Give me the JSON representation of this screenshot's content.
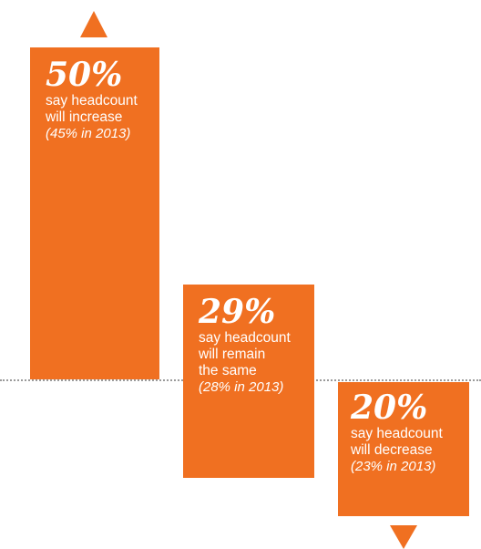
{
  "chart_data": {
    "type": "bar",
    "colors": {
      "bar": "#f07021",
      "baseline": "#9a9a9a"
    },
    "bars": [
      {
        "value": 50,
        "label": "50%",
        "description": "say headcount\nwill increase",
        "prior": "(45% in 2013)",
        "direction": "up"
      },
      {
        "value": 29,
        "label": "29%",
        "description": "say headcount\nwill remain\nthe same",
        "prior": "(28% in 2013)",
        "direction": "neutral"
      },
      {
        "value": 20,
        "label": "20%",
        "description": "say headcount\nwill decrease",
        "prior": "(23% in 2013)",
        "direction": "down"
      }
    ]
  }
}
